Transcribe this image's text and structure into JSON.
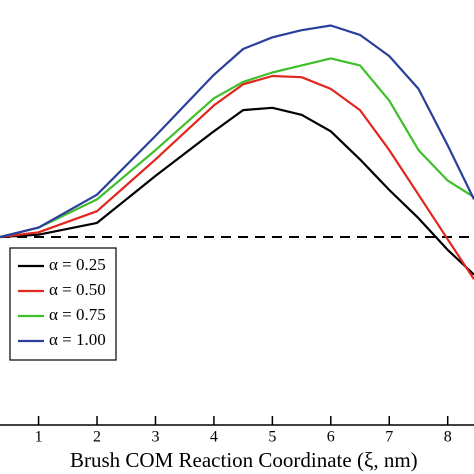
{
  "chart_data": {
    "type": "line",
    "x_label": "Brush COM Reaction Coordinate (ξ, nm)",
    "x": [
      0.34,
      1,
      2,
      3,
      4,
      4.5,
      5,
      5.5,
      6,
      6.5,
      7,
      7.5,
      8,
      8.45
    ],
    "series": [
      {
        "name": "α = 0.25",
        "color": "#000000",
        "values": [
          0,
          0.1,
          0.6,
          2.6,
          4.5,
          5.4,
          5.5,
          5.2,
          4.5,
          3.3,
          2.0,
          0.8,
          -0.55,
          -1.6
        ]
      },
      {
        "name": "α = 0.50",
        "color": "#e0261f",
        "values": [
          0,
          0.2,
          1.1,
          3.3,
          5.6,
          6.5,
          6.85,
          6.8,
          6.3,
          5.4,
          3.7,
          1.8,
          -0.1,
          -1.8
        ]
      },
      {
        "name": "α = 0.75",
        "color": "#3fbf2a",
        "values": [
          0,
          0.4,
          1.6,
          3.7,
          5.9,
          6.6,
          7.0,
          7.3,
          7.6,
          7.3,
          5.8,
          3.7,
          2.4,
          1.7
        ]
      },
      {
        "name": "α = 1.00",
        "color": "#2a3f9c",
        "values": [
          0,
          0.4,
          1.8,
          4.3,
          6.9,
          8.0,
          8.5,
          8.8,
          9.0,
          8.6,
          7.7,
          6.3,
          3.9,
          1.6
        ]
      }
    ],
    "xlim": [
      0.34,
      8.45
    ],
    "xticks": [
      1,
      2,
      3,
      4,
      5,
      6,
      7,
      8
    ],
    "ylim": [
      -8,
      10
    ],
    "hline": 0,
    "legend": "lower left"
  }
}
